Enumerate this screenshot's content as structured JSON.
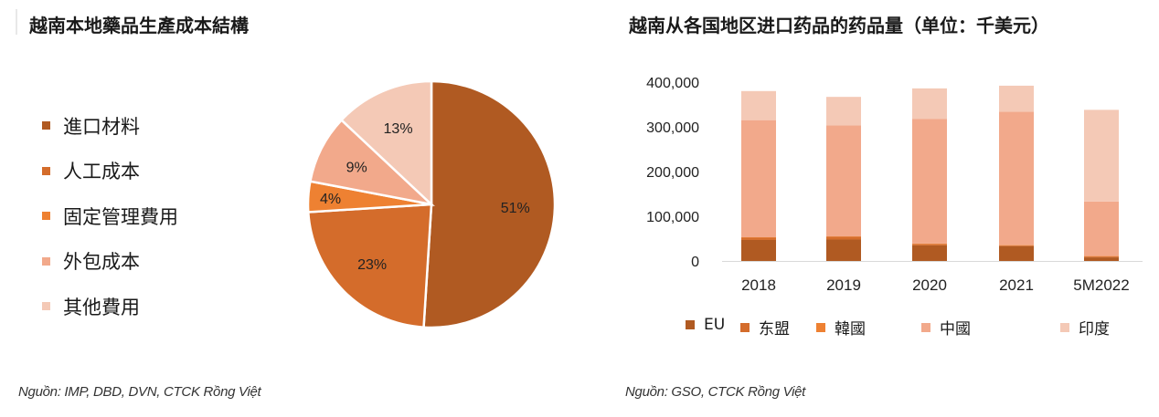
{
  "left": {
    "title": "越南本地藥品生產成本結構",
    "source": "Nguồn: IMP, DBD, DVN, CTCK Rồng Việt"
  },
  "right": {
    "title": "越南从各国地区进口药品的药品量（单位：千美元）",
    "source": "Nguồn: GSO, CTCK Rồng Việt"
  },
  "chart_data": [
    {
      "type": "pie",
      "title": "越南本地藥品生產成本結構",
      "slices": [
        {
          "label": "進口材料",
          "value": 51,
          "display": "51%",
          "color": "#b05a22"
        },
        {
          "label": "人工成本",
          "value": 23,
          "display": "23%",
          "color": "#d46c2b"
        },
        {
          "label": "固定管理費用",
          "value": 4,
          "display": "4%",
          "color": "#ee8132"
        },
        {
          "label": "外包成本",
          "value": 9,
          "display": "9%",
          "color": "#f2a98b"
        },
        {
          "label": "其他費用",
          "value": 13,
          "display": "13%",
          "color": "#f4c9b6"
        }
      ]
    },
    {
      "type": "bar",
      "stacked": true,
      "title": "越南从各国地区进口药品的药品量（单位：千美元）",
      "categories": [
        "2018",
        "2019",
        "2020",
        "2021",
        "5M2022"
      ],
      "ylim": [
        0,
        400000
      ],
      "yticks": [
        {
          "value": 0,
          "label": "0"
        },
        {
          "value": 100000,
          "label": "100,000"
        },
        {
          "value": 200000,
          "label": "200,000"
        },
        {
          "value": 300000,
          "label": "300,000"
        },
        {
          "value": 400000,
          "label": "400,000"
        }
      ],
      "legend_position": "bottom",
      "series": [
        {
          "name": "EU",
          "color": "#b05a22",
          "values": [
            47000,
            48000,
            35000,
            33000,
            8000
          ]
        },
        {
          "name": "东盟",
          "color": "#d46c2b",
          "values": [
            5000,
            6000,
            3000,
            2000,
            2000
          ]
        },
        {
          "name": "韓國",
          "color": "#ee8132",
          "values": [
            1000,
            1000,
            1000,
            1000,
            1000
          ]
        },
        {
          "name": "中國",
          "color": "#f2a98b",
          "values": [
            262000,
            248000,
            279000,
            298000,
            122000
          ]
        },
        {
          "name": "印度",
          "color": "#f4c9b6",
          "values": [
            65000,
            64000,
            68000,
            58000,
            205000
          ]
        }
      ]
    }
  ]
}
